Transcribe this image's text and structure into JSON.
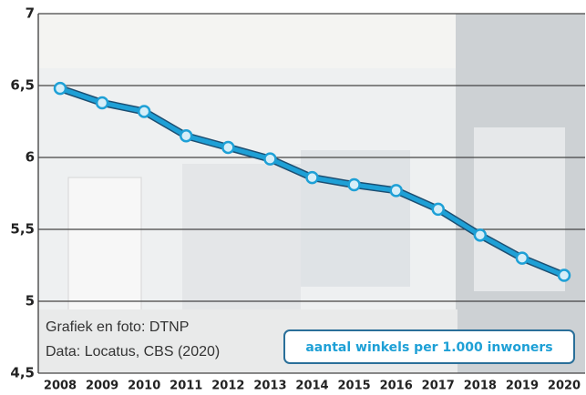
{
  "chart_data": {
    "type": "line",
    "categories": [
      "2008",
      "2009",
      "2010",
      "2011",
      "2012",
      "2013",
      "2014",
      "2015",
      "2016",
      "2017",
      "2018",
      "2019",
      "2020"
    ],
    "series": [
      {
        "name": "aantal winkels per 1.000 inwoners",
        "color": "#1ea0d6",
        "values": [
          6.48,
          6.38,
          6.32,
          6.15,
          6.07,
          5.99,
          5.86,
          5.81,
          5.77,
          5.64,
          5.46,
          5.3,
          5.18
        ]
      }
    ],
    "ylim": [
      4.5,
      7
    ],
    "yticks": [
      {
        "value": 4.5,
        "label": "4,5"
      },
      5,
      {
        "value": 5.5,
        "label": "5,5"
      },
      6,
      {
        "value": 6.5,
        "label": "6,5"
      },
      7
    ],
    "grid": true,
    "annotations": [
      "Grafiek en foto: DTNP",
      "Data: Locatus, CBS (2020)"
    ]
  }
}
